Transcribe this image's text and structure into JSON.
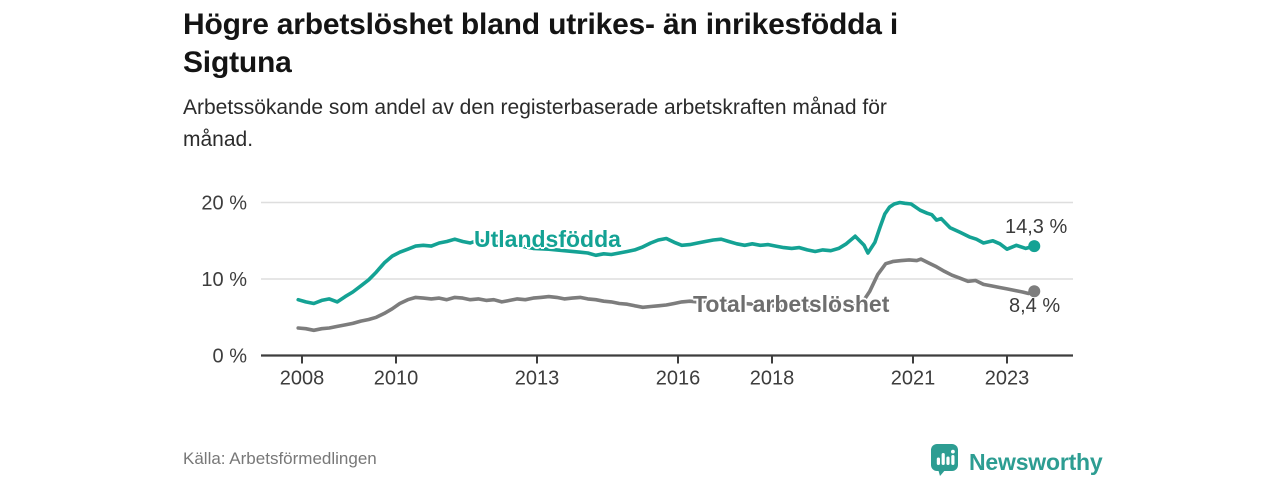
{
  "chart_data": {
    "type": "line",
    "title": "Högre arbetslöshet bland utrikes- än inrikesfödda i\nSigtuna",
    "subtitle": "Arbetssökande som andel av den registerbaserade arbetskraften månad för\nmånad.",
    "xlabel": "",
    "ylabel": "",
    "ylim": [
      0,
      20
    ],
    "xlim": [
      2007.1,
      2024.4
    ],
    "grid": "horizontal",
    "legend_position": "inline-labels",
    "y_ticks": [
      {
        "value": 0,
        "label": "0 %"
      },
      {
        "value": 10,
        "label": "10 %"
      },
      {
        "value": 20,
        "label": "20 %"
      }
    ],
    "x_ticks": [
      {
        "value": 2008,
        "label": "2008"
      },
      {
        "value": 2010,
        "label": "2010"
      },
      {
        "value": 2013,
        "label": "2013"
      },
      {
        "value": 2016,
        "label": "2016"
      },
      {
        "value": 2018,
        "label": "2018"
      },
      {
        "value": 2021,
        "label": "2021"
      },
      {
        "value": 2023,
        "label": "2023"
      }
    ],
    "series": [
      {
        "name": "Utlandsfödda",
        "color": "#14a294",
        "label_color": "#14a294",
        "end_label": "14,3 %",
        "end_value": 14.3,
        "points": [
          [
            2007.92,
            7.3
          ],
          [
            2008.08,
            7.0
          ],
          [
            2008.25,
            6.8
          ],
          [
            2008.42,
            7.2
          ],
          [
            2008.58,
            7.4
          ],
          [
            2008.75,
            7.0
          ],
          [
            2008.92,
            7.7
          ],
          [
            2009.08,
            8.3
          ],
          [
            2009.25,
            9.1
          ],
          [
            2009.42,
            9.9
          ],
          [
            2009.58,
            10.9
          ],
          [
            2009.75,
            12.1
          ],
          [
            2009.92,
            13.0
          ],
          [
            2010.08,
            13.5
          ],
          [
            2010.25,
            13.9
          ],
          [
            2010.42,
            14.3
          ],
          [
            2010.58,
            14.4
          ],
          [
            2010.75,
            14.3
          ],
          [
            2010.92,
            14.7
          ],
          [
            2011.08,
            14.9
          ],
          [
            2011.25,
            15.2
          ],
          [
            2011.42,
            14.9
          ],
          [
            2011.58,
            14.7
          ],
          [
            2011.75,
            15.1
          ],
          [
            2011.92,
            14.8
          ],
          [
            2012.08,
            15.0
          ],
          [
            2012.25,
            14.6
          ],
          [
            2012.42,
            14.8
          ],
          [
            2012.58,
            14.4
          ],
          [
            2012.75,
            14.2
          ],
          [
            2012.92,
            14.0
          ],
          [
            2013.25,
            13.9
          ],
          [
            2013.58,
            13.7
          ],
          [
            2013.92,
            13.5
          ],
          [
            2014.08,
            13.4
          ],
          [
            2014.25,
            13.1
          ],
          [
            2014.42,
            13.3
          ],
          [
            2014.58,
            13.2
          ],
          [
            2014.75,
            13.4
          ],
          [
            2014.92,
            13.6
          ],
          [
            2015.08,
            13.8
          ],
          [
            2015.25,
            14.2
          ],
          [
            2015.42,
            14.7
          ],
          [
            2015.58,
            15.1
          ],
          [
            2015.75,
            15.3
          ],
          [
            2015.92,
            14.8
          ],
          [
            2016.08,
            14.4
          ],
          [
            2016.25,
            14.5
          ],
          [
            2016.42,
            14.7
          ],
          [
            2016.58,
            14.9
          ],
          [
            2016.75,
            15.1
          ],
          [
            2016.92,
            15.2
          ],
          [
            2017.08,
            14.9
          ],
          [
            2017.25,
            14.6
          ],
          [
            2017.42,
            14.4
          ],
          [
            2017.58,
            14.6
          ],
          [
            2017.75,
            14.4
          ],
          [
            2017.92,
            14.5
          ],
          [
            2018.08,
            14.3
          ],
          [
            2018.25,
            14.1
          ],
          [
            2018.42,
            14.0
          ],
          [
            2018.58,
            14.1
          ],
          [
            2018.75,
            13.8
          ],
          [
            2018.92,
            13.6
          ],
          [
            2019.08,
            13.8
          ],
          [
            2019.25,
            13.7
          ],
          [
            2019.42,
            14.0
          ],
          [
            2019.58,
            14.6
          ],
          [
            2019.77,
            15.6
          ],
          [
            2019.96,
            14.4
          ],
          [
            2020.04,
            13.4
          ],
          [
            2020.19,
            14.8
          ],
          [
            2020.3,
            16.8
          ],
          [
            2020.4,
            18.5
          ],
          [
            2020.5,
            19.4
          ],
          [
            2020.6,
            19.8
          ],
          [
            2020.72,
            20.0
          ],
          [
            2020.83,
            19.9
          ],
          [
            2020.96,
            19.8
          ],
          [
            2021.15,
            19.0
          ],
          [
            2021.3,
            18.6
          ],
          [
            2021.4,
            18.4
          ],
          [
            2021.5,
            17.7
          ],
          [
            2021.6,
            17.9
          ],
          [
            2021.79,
            16.7
          ],
          [
            2022.0,
            16.1
          ],
          [
            2022.2,
            15.5
          ],
          [
            2022.35,
            15.2
          ],
          [
            2022.5,
            14.7
          ],
          [
            2022.7,
            15.0
          ],
          [
            2022.85,
            14.6
          ],
          [
            2023.0,
            13.9
          ],
          [
            2023.2,
            14.4
          ],
          [
            2023.4,
            14.0
          ],
          [
            2023.58,
            14.3
          ]
        ]
      },
      {
        "name": "Total arbetslöshet",
        "color": "#7d7d7d",
        "label_color": "#6e6e6e",
        "end_label": "8,4 %",
        "end_value": 8.4,
        "points": [
          [
            2007.92,
            3.6
          ],
          [
            2008.08,
            3.5
          ],
          [
            2008.25,
            3.3
          ],
          [
            2008.42,
            3.5
          ],
          [
            2008.58,
            3.6
          ],
          [
            2008.75,
            3.8
          ],
          [
            2008.92,
            4.0
          ],
          [
            2009.08,
            4.2
          ],
          [
            2009.25,
            4.5
          ],
          [
            2009.42,
            4.7
          ],
          [
            2009.58,
            5.0
          ],
          [
            2009.75,
            5.5
          ],
          [
            2009.92,
            6.1
          ],
          [
            2010.08,
            6.8
          ],
          [
            2010.25,
            7.3
          ],
          [
            2010.42,
            7.6
          ],
          [
            2010.58,
            7.5
          ],
          [
            2010.75,
            7.4
          ],
          [
            2010.92,
            7.5
          ],
          [
            2011.08,
            7.3
          ],
          [
            2011.25,
            7.6
          ],
          [
            2011.42,
            7.5
          ],
          [
            2011.58,
            7.3
          ],
          [
            2011.75,
            7.4
          ],
          [
            2011.92,
            7.2
          ],
          [
            2012.08,
            7.3
          ],
          [
            2012.25,
            7.0
          ],
          [
            2012.42,
            7.2
          ],
          [
            2012.58,
            7.4
          ],
          [
            2012.75,
            7.3
          ],
          [
            2012.92,
            7.5
          ],
          [
            2013.08,
            7.6
          ],
          [
            2013.25,
            7.7
          ],
          [
            2013.42,
            7.6
          ],
          [
            2013.58,
            7.4
          ],
          [
            2013.75,
            7.5
          ],
          [
            2013.92,
            7.6
          ],
          [
            2014.08,
            7.4
          ],
          [
            2014.25,
            7.3
          ],
          [
            2014.42,
            7.1
          ],
          [
            2014.58,
            7.0
          ],
          [
            2014.75,
            6.8
          ],
          [
            2014.92,
            6.7
          ],
          [
            2015.08,
            6.5
          ],
          [
            2015.25,
            6.3
          ],
          [
            2015.42,
            6.4
          ],
          [
            2015.58,
            6.5
          ],
          [
            2015.75,
            6.6
          ],
          [
            2015.92,
            6.8
          ],
          [
            2016.08,
            7.0
          ],
          [
            2016.25,
            7.1
          ],
          [
            2016.42,
            7.0
          ],
          [
            2016.58,
            7.1
          ],
          [
            2016.75,
            7.0
          ],
          [
            2016.92,
            6.9
          ],
          [
            2017.08,
            7.0
          ],
          [
            2017.25,
            6.9
          ],
          [
            2017.42,
            6.8
          ],
          [
            2017.58,
            6.7
          ],
          [
            2017.75,
            6.6
          ],
          [
            2017.92,
            6.5
          ],
          [
            2018.08,
            6.5
          ],
          [
            2018.25,
            6.4
          ],
          [
            2018.42,
            6.3
          ],
          [
            2018.58,
            6.3
          ],
          [
            2018.75,
            6.2
          ],
          [
            2018.92,
            6.3
          ],
          [
            2019.08,
            6.3
          ],
          [
            2019.25,
            6.4
          ],
          [
            2019.42,
            6.4
          ],
          [
            2019.58,
            6.5
          ],
          [
            2019.75,
            6.6
          ],
          [
            2019.92,
            6.9
          ],
          [
            2020.08,
            8.4
          ],
          [
            2020.25,
            10.6
          ],
          [
            2020.42,
            12.0
          ],
          [
            2020.58,
            12.3
          ],
          [
            2020.75,
            12.4
          ],
          [
            2020.92,
            12.5
          ],
          [
            2021.08,
            12.4
          ],
          [
            2021.17,
            12.6
          ],
          [
            2021.33,
            12.1
          ],
          [
            2021.5,
            11.6
          ],
          [
            2021.67,
            11.0
          ],
          [
            2021.83,
            10.5
          ],
          [
            2022.0,
            10.1
          ],
          [
            2022.17,
            9.7
          ],
          [
            2022.33,
            9.8
          ],
          [
            2022.5,
            9.3
          ],
          [
            2022.67,
            9.1
          ],
          [
            2022.83,
            8.9
          ],
          [
            2023.0,
            8.7
          ],
          [
            2023.17,
            8.5
          ],
          [
            2023.33,
            8.3
          ],
          [
            2023.46,
            8.1
          ],
          [
            2023.58,
            8.4
          ]
        ]
      }
    ],
    "colors": {
      "grid": "#dedede",
      "axis": "#3d3d3d",
      "tick_label": "#3d3d3d",
      "accent_teal": "#14a294",
      "line_gray": "#7d7d7d"
    }
  },
  "footer": {
    "source": "Källa: Arbetsförmedlingen",
    "brand": "Newsworthy",
    "brand_color": "#2d9d92"
  }
}
